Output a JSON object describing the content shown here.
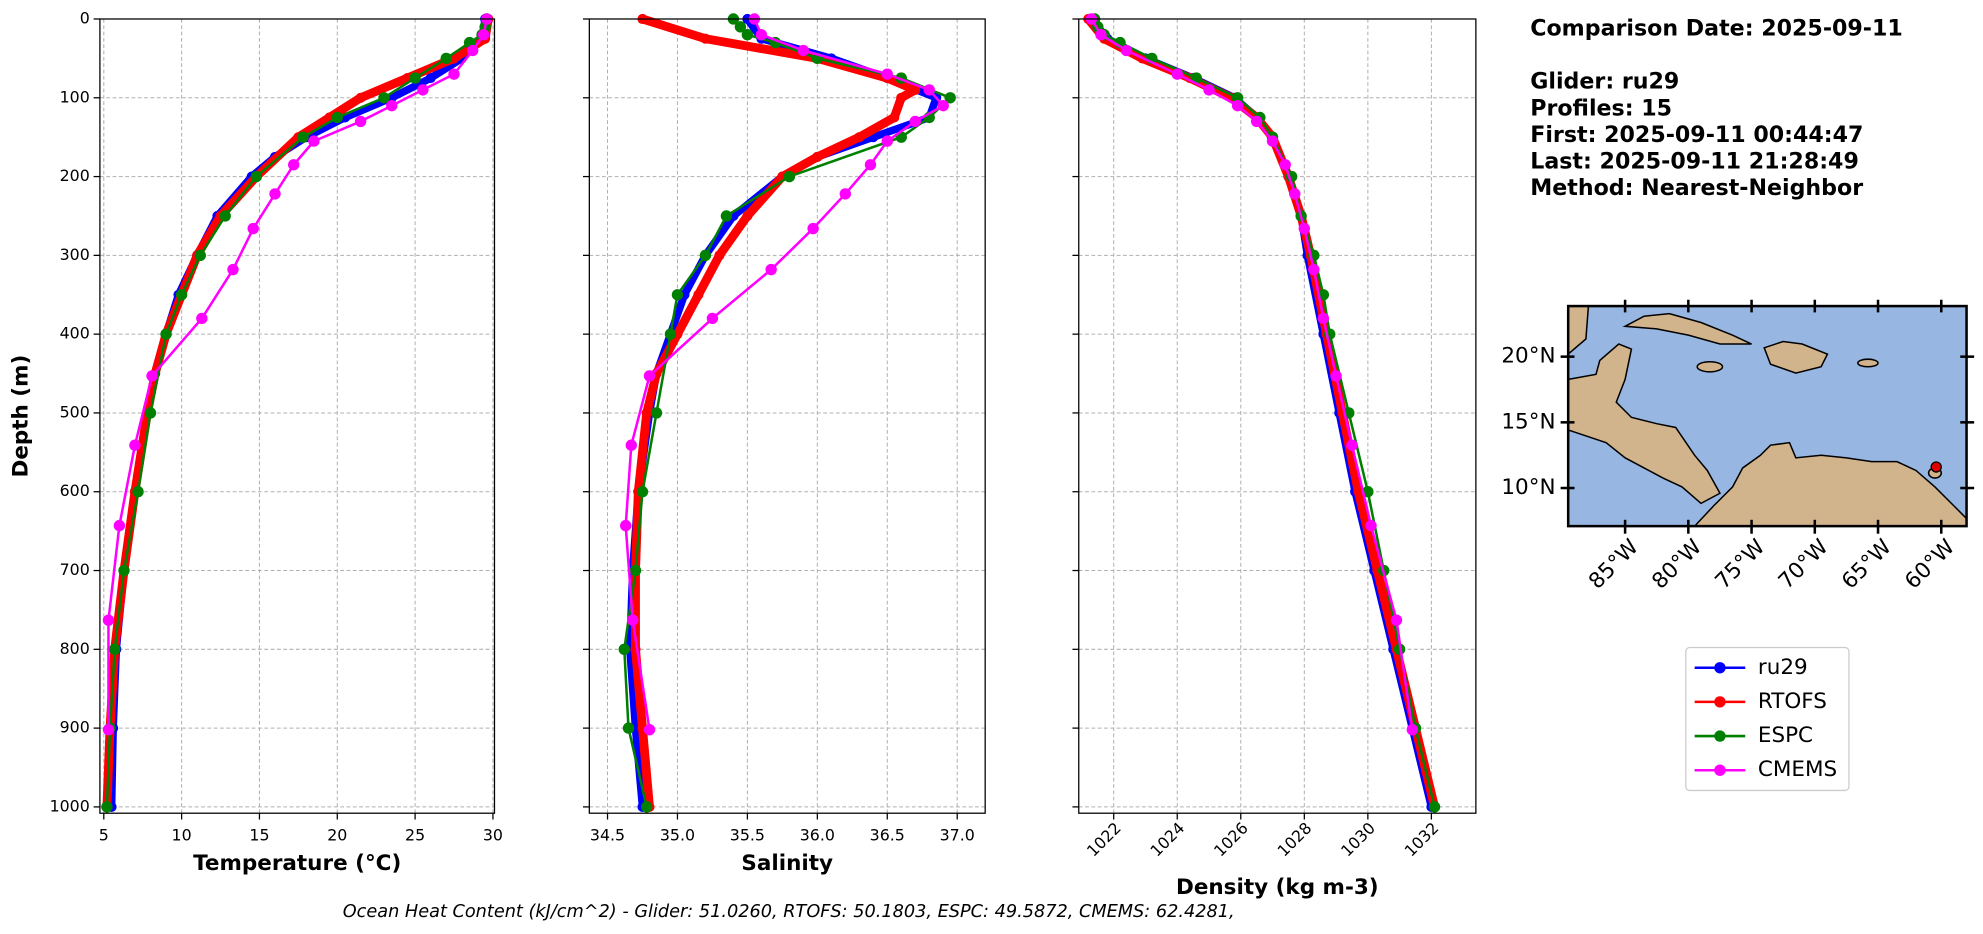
{
  "chart_data": [
    {
      "type": "line",
      "xlabel": "Temperature (°C)",
      "ylabel": "Depth (m)",
      "xlim": [
        4.75,
        30.1
      ],
      "ylim": [
        0,
        1008
      ],
      "y_inverted": true,
      "grid": true,
      "xticks": [
        5,
        10,
        15,
        20,
        25,
        30
      ],
      "yticks": [
        0,
        100,
        200,
        300,
        400,
        500,
        600,
        700,
        800,
        900,
        1000
      ],
      "series": [
        {
          "name": "ru29",
          "color": "#0000ff",
          "depth": [
            0,
            25,
            50,
            75,
            100,
            125,
            150,
            175,
            200,
            250,
            300,
            350,
            400,
            450,
            500,
            600,
            700,
            800,
            900,
            1000
          ],
          "values": [
            29.5,
            29.3,
            28,
            26,
            23.5,
            20.5,
            18,
            16,
            14.5,
            12.3,
            11,
            9.8,
            9,
            8.3,
            7.8,
            7,
            6.3,
            5.8,
            5.6,
            5.5
          ]
        },
        {
          "name": "RTOFS",
          "color": "#ff0000",
          "depth": [
            0,
            25,
            50,
            75,
            100,
            125,
            150,
            200,
            250,
            300,
            350,
            400,
            450,
            500,
            600,
            700,
            800,
            900,
            1000
          ],
          "values": [
            29.7,
            29.5,
            27.5,
            24.5,
            21.5,
            19.5,
            17.5,
            14.8,
            12.5,
            11,
            10,
            9,
            8.3,
            7.8,
            7,
            6.3,
            5.7,
            5.4,
            5.2
          ]
        },
        {
          "name": "ESPC",
          "color": "#008000",
          "depth": [
            0,
            10,
            20,
            30,
            50,
            75,
            100,
            125,
            150,
            200,
            250,
            300,
            350,
            400,
            500,
            600,
            700,
            800,
            900,
            1000
          ],
          "values": [
            29.6,
            29.5,
            29.3,
            28.5,
            27,
            25,
            23,
            20,
            17.8,
            14.8,
            12.8,
            11.2,
            10,
            9,
            8,
            7.2,
            6.3,
            5.7,
            5.4,
            5.2
          ]
        },
        {
          "name": "CMEMS",
          "color": "#ff00ff",
          "depth": [
            0,
            20,
            40,
            70,
            90,
            110,
            130,
            155,
            185,
            222,
            266,
            318,
            380,
            453,
            541,
            643,
            763,
            902
          ],
          "values": [
            29.6,
            29.4,
            28.7,
            27.5,
            25.5,
            23.5,
            21.5,
            18.5,
            17.2,
            16,
            14.6,
            13.3,
            11.3,
            8.1,
            7,
            6,
            5.3,
            5.3
          ]
        }
      ]
    },
    {
      "type": "line",
      "xlabel": "Salinity",
      "xlim": [
        34.37,
        37.2
      ],
      "ylim": [
        0,
        1008
      ],
      "y_inverted": true,
      "grid": true,
      "xticks": [
        34.5,
        {
          "value": 35,
          "label": "35.0"
        },
        35.5,
        {
          "value": 36,
          "label": "36.0"
        },
        36.5,
        {
          "value": 37,
          "label": "37.0"
        }
      ],
      "yticks": [
        0,
        100,
        200,
        300,
        400,
        500,
        600,
        700,
        800,
        900,
        1000
      ],
      "series": [
        {
          "color": "#0000ff",
          "depth": [
            0,
            25,
            50,
            75,
            100,
            125,
            150,
            175,
            200,
            250,
            300,
            350,
            400,
            450,
            500,
            600,
            700,
            800,
            900,
            1000
          ],
          "values": [
            35.5,
            35.6,
            36.1,
            36.5,
            36.85,
            36.8,
            36.4,
            36.0,
            35.75,
            35.4,
            35.2,
            35.05,
            34.95,
            34.85,
            34.8,
            34.72,
            34.68,
            34.66,
            34.7,
            34.75
          ]
        },
        {
          "color": "#ff0000",
          "depth": [
            0,
            25,
            50,
            75,
            90,
            100,
            125,
            150,
            175,
            200,
            250,
            300,
            350,
            400,
            450,
            500,
            600,
            700,
            800,
            900,
            1000
          ],
          "values": [
            34.75,
            35.2,
            36.0,
            36.5,
            36.7,
            36.6,
            36.55,
            36.3,
            36.0,
            35.75,
            35.5,
            35.3,
            35.15,
            35.0,
            34.85,
            34.78,
            34.72,
            34.7,
            34.7,
            34.75,
            34.8
          ]
        },
        {
          "color": "#008000",
          "depth": [
            0,
            10,
            20,
            30,
            50,
            75,
            100,
            125,
            150,
            200,
            250,
            300,
            350,
            400,
            500,
            600,
            700,
            800,
            900,
            1000
          ],
          "values": [
            35.4,
            35.45,
            35.5,
            35.7,
            36.0,
            36.6,
            36.95,
            36.8,
            36.6,
            35.8,
            35.35,
            35.2,
            35.0,
            34.95,
            34.85,
            34.75,
            34.7,
            34.62,
            34.65,
            34.78
          ]
        },
        {
          "color": "#ff00ff",
          "depth": [
            0,
            20,
            40,
            70,
            90,
            110,
            130,
            155,
            185,
            222,
            266,
            318,
            380,
            453,
            541,
            643,
            763,
            902
          ],
          "values": [
            35.55,
            35.6,
            35.9,
            36.5,
            36.8,
            36.9,
            36.7,
            36.5,
            36.38,
            36.2,
            35.97,
            35.67,
            35.25,
            34.8,
            34.67,
            34.63,
            34.68,
            34.8
          ]
        }
      ]
    },
    {
      "type": "line",
      "xlabel": "Density (kg m-3)",
      "xlim": [
        1020.9,
        1033.4
      ],
      "ylim": [
        0,
        1008
      ],
      "y_inverted": true,
      "grid": true,
      "xticks": [
        1022,
        1024,
        1026,
        1028,
        1030,
        1032
      ],
      "yticks": [
        0,
        100,
        200,
        300,
        400,
        500,
        600,
        700,
        800,
        900,
        1000
      ],
      "series": [
        {
          "color": "#0000ff",
          "depth": [
            0,
            25,
            50,
            75,
            100,
            125,
            150,
            200,
            250,
            300,
            400,
            500,
            600,
            700,
            800,
            900,
            1000
          ],
          "values": [
            1021.3,
            1021.8,
            1023.0,
            1024.5,
            1025.8,
            1026.5,
            1027.0,
            1027.5,
            1027.9,
            1028.1,
            1028.6,
            1029.1,
            1029.6,
            1030.2,
            1030.8,
            1031.4,
            1032.0
          ]
        },
        {
          "color": "#ff0000",
          "depth": [
            0,
            25,
            50,
            75,
            100,
            125,
            150,
            200,
            250,
            300,
            400,
            500,
            600,
            700,
            800,
            900,
            1000
          ],
          "values": [
            1021.2,
            1021.7,
            1022.9,
            1024.4,
            1025.7,
            1026.5,
            1027.0,
            1027.5,
            1027.9,
            1028.2,
            1028.7,
            1029.2,
            1029.7,
            1030.3,
            1030.9,
            1031.5,
            1032.1
          ]
        },
        {
          "color": "#008000",
          "depth": [
            0,
            10,
            20,
            30,
            50,
            75,
            100,
            125,
            150,
            200,
            250,
            300,
            350,
            400,
            500,
            600,
            700,
            800,
            900,
            1000
          ],
          "values": [
            1021.4,
            1021.5,
            1021.7,
            1022.2,
            1023.2,
            1024.6,
            1025.9,
            1026.6,
            1027.0,
            1027.6,
            1027.9,
            1028.3,
            1028.6,
            1028.8,
            1029.4,
            1030.0,
            1030.5,
            1031.0,
            1031.5,
            1032.1
          ]
        },
        {
          "color": "#ff00ff",
          "depth": [
            0,
            20,
            40,
            70,
            90,
            110,
            130,
            155,
            185,
            222,
            266,
            318,
            380,
            453,
            541,
            643,
            763,
            902
          ],
          "values": [
            1021.3,
            1021.6,
            1022.4,
            1024.0,
            1025.0,
            1025.9,
            1026.5,
            1027.0,
            1027.4,
            1027.7,
            1028.0,
            1028.3,
            1028.6,
            1029.0,
            1029.5,
            1030.1,
            1030.9,
            1031.4
          ]
        }
      ]
    }
  ],
  "info": [
    "Comparison Date: 2025-09-11",
    "",
    "Glider: ru29",
    "Profiles: 15",
    "First: 2025-09-11 00:44:47",
    "Last: 2025-09-11 21:28:49",
    "Method: Nearest-Neighbor"
  ],
  "map": {
    "xlim": [
      -89.5,
      -58
    ],
    "ylim": [
      7.1,
      23.85
    ],
    "xticks": [
      {
        "value": -85,
        "label": "85°W"
      },
      {
        "value": -80,
        "label": "80°W"
      },
      {
        "value": -75,
        "label": "75°W"
      },
      {
        "value": -70,
        "label": "70°W"
      },
      {
        "value": -65,
        "label": "65°W"
      },
      {
        "value": -60,
        "label": "60°W"
      }
    ],
    "yticks": [
      {
        "value": 10,
        "label": "10°N"
      },
      {
        "value": 15,
        "label": "15°N"
      },
      {
        "value": 20,
        "label": "20°N"
      }
    ],
    "glider_lon": -60.4,
    "glider_lat": 11.6
  },
  "footer": "Ocean Heat Content (kJ/cm^2) - Glider: 51.0260,  RTOFS: 50.1803,  ESPC: 49.5872,  CMEMS: 62.4281,"
}
